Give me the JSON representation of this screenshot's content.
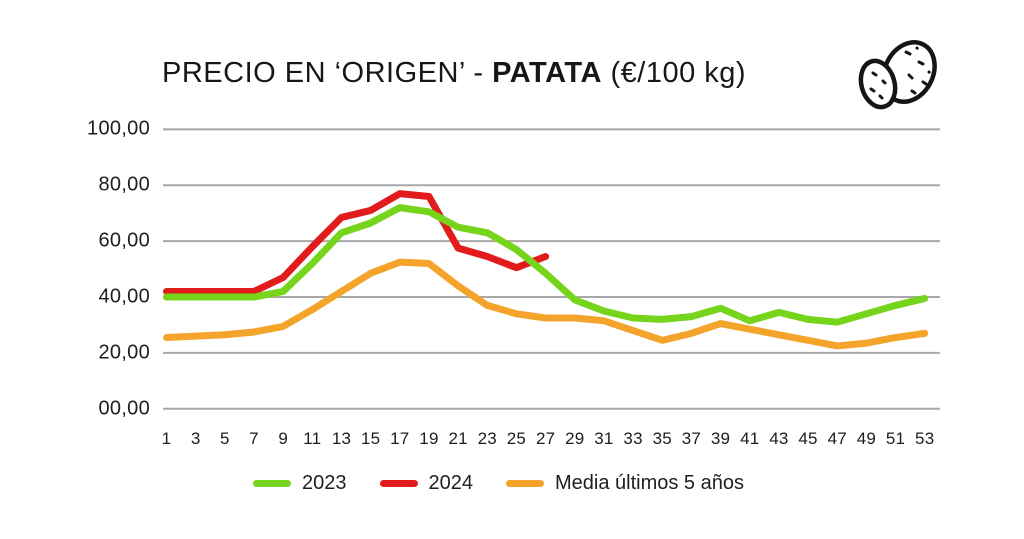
{
  "header": {
    "title_prefix": "PRECIO EN ‘ORIGEN’ - ",
    "title_bold": "PATATA",
    "title_suffix": " (€/100 kg)",
    "icon": "potato-icon"
  },
  "chart_data": {
    "type": "line",
    "title": "PRECIO EN ‘ORIGEN’ - PATATA (€/100 kg)",
    "xlabel": "",
    "ylabel": "",
    "x_unit": "semana",
    "y_unit": "€/100 kg",
    "ylim": [
      0,
      100
    ],
    "grid": true,
    "legend_position": "bottom",
    "y_ticks": [
      "100,00",
      "80,00",
      "60,00",
      "40,00",
      "20,00",
      "00,00"
    ],
    "y_tick_values": [
      100,
      80,
      60,
      40,
      20,
      0
    ],
    "x_ticks": [
      1,
      3,
      5,
      7,
      9,
      11,
      13,
      15,
      17,
      19,
      21,
      23,
      25,
      27,
      29,
      31,
      33,
      35,
      37,
      39,
      41,
      43,
      45,
      47,
      49,
      51,
      53
    ],
    "series": [
      {
        "name": "2023",
        "color": "#77d41d",
        "x": [
          1,
          3,
          5,
          7,
          9,
          11,
          13,
          15,
          17,
          19,
          21,
          23,
          25,
          27,
          29,
          31,
          33,
          35,
          37,
          39,
          41,
          43,
          45,
          47,
          49,
          51,
          53
        ],
        "values": [
          40,
          40,
          40,
          40,
          42,
          52,
          63,
          66.5,
          72,
          70.5,
          65,
          63,
          57,
          48.5,
          39,
          35,
          32.5,
          32,
          33,
          36,
          31.5,
          34.5,
          32,
          31,
          34,
          37,
          39.5
        ]
      },
      {
        "name": "2024",
        "color": "#e21c1c",
        "x": [
          1,
          3,
          5,
          7,
          9,
          11,
          13,
          15,
          17,
          19,
          21,
          23,
          25,
          27
        ],
        "values": [
          42,
          42,
          42,
          42,
          47,
          58,
          68.5,
          71,
          77,
          76,
          57.5,
          54.5,
          50.5,
          54.5
        ]
      },
      {
        "name": "Media últimos 5 años",
        "color": "#f5a42b",
        "x": [
          1,
          3,
          5,
          7,
          9,
          11,
          13,
          15,
          17,
          19,
          21,
          23,
          25,
          27,
          29,
          31,
          33,
          35,
          37,
          39,
          41,
          43,
          45,
          47,
          49,
          51,
          53
        ],
        "values": [
          25.5,
          26,
          26.5,
          27.5,
          29.5,
          35.5,
          42,
          48.5,
          52.5,
          52,
          44,
          37,
          34,
          32.5,
          32.5,
          31.5,
          28,
          24.5,
          27,
          30.5,
          28.5,
          26.5,
          24.5,
          22.5,
          23.5,
          25.5,
          27
        ]
      }
    ],
    "colors": {
      "gridline": "#a8a8a8",
      "text": "#1d1d1d"
    }
  }
}
